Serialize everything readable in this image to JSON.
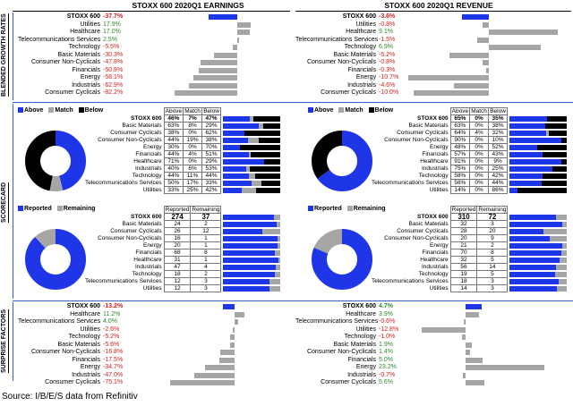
{
  "headers": {
    "earnings": "STOXX 600 2020Q1 EARNINGS",
    "revenue": "STOXX 600 2020Q1 REVENUE"
  },
  "sections": {
    "growth": "BLENDED GROWTH RATES",
    "scorecard": "SCORECARD",
    "surprise": "SURPRISE FACTORS"
  },
  "colors": {
    "blue": "#1f35e8",
    "gray": "#a6a6a6",
    "black": "#000000",
    "pos": "#2e8b2e",
    "neg": "#d02020"
  },
  "legend": {
    "above": "Above",
    "match": "Match",
    "below": "Below",
    "reported": "Reported",
    "remaining": "Remaining"
  },
  "growth_earnings": [
    {
      "label": "STOXX 600",
      "text": "-37.7%",
      "value": -37.7
    },
    {
      "label": "Utilities",
      "text": "17.9%",
      "value": 17.9
    },
    {
      "label": "Healthcare",
      "text": "17.0%",
      "value": 17.0
    },
    {
      "label": "Telecommunications Services",
      "text": "2.5%",
      "value": 2.5
    },
    {
      "label": "Technology",
      "text": "-5.5%",
      "value": -5.5
    },
    {
      "label": "Basic Materials",
      "text": "-30.3%",
      "value": -30.3
    },
    {
      "label": "Consumer Non-Cyclicals",
      "text": "-47.8%",
      "value": -47.8
    },
    {
      "label": "Financials",
      "text": "-50.8%",
      "value": -50.8
    },
    {
      "label": "Energy",
      "text": "-58.1%",
      "value": -58.1
    },
    {
      "label": "Industrials",
      "text": "-62.9%",
      "value": -62.9
    },
    {
      "label": "Consumer Cyclicals",
      "text": "-82.2%",
      "value": -82.2
    }
  ],
  "growth_revenue": [
    {
      "label": "STOXX 600",
      "text": "-3.6%",
      "value": -3.6
    },
    {
      "label": "Utilities",
      "text": "-0.8%",
      "value": -0.8
    },
    {
      "label": "Healthcare",
      "text": "9.1%",
      "value": 9.1
    },
    {
      "label": "Telecommunications Services",
      "text": "-1.5%",
      "value": -1.5
    },
    {
      "label": "Technology",
      "text": "6.9%",
      "value": 6.9
    },
    {
      "label": "Basic Materials",
      "text": "-5.2%",
      "value": -5.2
    },
    {
      "label": "Consumer Non-Cyclicals",
      "text": "-0.8%",
      "value": -0.8
    },
    {
      "label": "Financials",
      "text": "-0.3%",
      "value": -0.3
    },
    {
      "label": "Energy",
      "text": "-10.7%",
      "value": -10.7
    },
    {
      "label": "Industrials",
      "text": "-4.6%",
      "value": -4.6
    },
    {
      "label": "Consumer Cyclicals",
      "text": "-10.0%",
      "value": -10.0
    }
  ],
  "beat_earnings": {
    "pie": {
      "above": 46,
      "match": 7,
      "below": 47
    },
    "head": [
      "Above",
      "Match",
      "Below"
    ],
    "rows": [
      {
        "label": "STOXX 600",
        "a": "46%",
        "m": "7%",
        "b": "47%",
        "av": 46,
        "mv": 7,
        "bv": 47
      },
      {
        "label": "Basic Materials",
        "a": "63%",
        "m": "8%",
        "b": "29%",
        "av": 63,
        "mv": 8,
        "bv": 29
      },
      {
        "label": "Consumer Cyclicals",
        "a": "38%",
        "m": "0%",
        "b": "62%",
        "av": 38,
        "mv": 0,
        "bv": 62
      },
      {
        "label": "Consumer Non-Cyclicals",
        "a": "44%",
        "m": "19%",
        "b": "38%",
        "av": 44,
        "mv": 19,
        "bv": 38
      },
      {
        "label": "Energy",
        "a": "30%",
        "m": "0%",
        "b": "70%",
        "av": 30,
        "mv": 0,
        "bv": 70
      },
      {
        "label": "Financials",
        "a": "44%",
        "m": "4%",
        "b": "51%",
        "av": 44,
        "mv": 4,
        "bv": 51
      },
      {
        "label": "Healthcare",
        "a": "71%",
        "m": "0%",
        "b": "29%",
        "av": 71,
        "mv": 0,
        "bv": 29
      },
      {
        "label": "Industrials",
        "a": "40%",
        "m": "6%",
        "b": "53%",
        "av": 40,
        "mv": 6,
        "bv": 53
      },
      {
        "label": "Technology",
        "a": "44%",
        "m": "11%",
        "b": "44%",
        "av": 44,
        "mv": 11,
        "bv": 44
      },
      {
        "label": "Telecommunications Services",
        "a": "50%",
        "m": "17%",
        "b": "33%",
        "av": 50,
        "mv": 17,
        "bv": 33
      },
      {
        "label": "Utilities",
        "a": "33%",
        "m": "25%",
        "b": "42%",
        "av": 33,
        "mv": 25,
        "bv": 42
      }
    ]
  },
  "beat_revenue": {
    "pie": {
      "above": 65,
      "match": 0,
      "below": 35
    },
    "head": [
      "Above",
      "Match",
      "Below"
    ],
    "rows": [
      {
        "label": "STOXX 600",
        "a": "65%",
        "m": "0%",
        "b": "35%",
        "av": 65,
        "mv": 0,
        "bv": 35
      },
      {
        "label": "Basic Materials",
        "a": "63%",
        "m": "0%",
        "b": "38%",
        "av": 63,
        "mv": 0,
        "bv": 38
      },
      {
        "label": "Consumer Cyclicals",
        "a": "64%",
        "m": "4%",
        "b": "32%",
        "av": 64,
        "mv": 4,
        "bv": 32
      },
      {
        "label": "Consumer Non-Cyclicals",
        "a": "90%",
        "m": "0%",
        "b": "10%",
        "av": 90,
        "mv": 0,
        "bv": 10
      },
      {
        "label": "Energy",
        "a": "48%",
        "m": "0%",
        "b": "52%",
        "av": 48,
        "mv": 0,
        "bv": 52
      },
      {
        "label": "Financials",
        "a": "57%",
        "m": "0%",
        "b": "43%",
        "av": 57,
        "mv": 0,
        "bv": 43
      },
      {
        "label": "Healthcare",
        "a": "91%",
        "m": "0%",
        "b": "9%",
        "av": 91,
        "mv": 0,
        "bv": 9
      },
      {
        "label": "Industrials",
        "a": "75%",
        "m": "0%",
        "b": "25%",
        "av": 75,
        "mv": 0,
        "bv": 25
      },
      {
        "label": "Technology",
        "a": "58%",
        "m": "0%",
        "b": "42%",
        "av": 58,
        "mv": 0,
        "bv": 42
      },
      {
        "label": "Telecommunications Services",
        "a": "56%",
        "m": "0%",
        "b": "44%",
        "av": 56,
        "mv": 0,
        "bv": 44
      },
      {
        "label": "Utilities",
        "a": "14%",
        "m": "0%",
        "b": "86%",
        "av": 14,
        "mv": 0,
        "bv": 86
      }
    ]
  },
  "rep_earnings": {
    "pie": {
      "reported": 274,
      "remaining": 37
    },
    "head": [
      "Reported",
      "Remaining"
    ],
    "rows": [
      {
        "label": "STOXX 600",
        "r": "274",
        "x": "37",
        "rv": 274,
        "xv": 37
      },
      {
        "label": "Basic Materials",
        "r": "24",
        "x": "2",
        "rv": 24,
        "xv": 2
      },
      {
        "label": "Consumer Cyclicals",
        "r": "26",
        "x": "12",
        "rv": 26,
        "xv": 12
      },
      {
        "label": "Consumer Non-Cyclicals",
        "r": "16",
        "x": "1",
        "rv": 16,
        "xv": 1
      },
      {
        "label": "Energy",
        "r": "20",
        "x": "1",
        "rv": 20,
        "xv": 1
      },
      {
        "label": "Financials",
        "r": "68",
        "x": "8",
        "rv": 68,
        "xv": 8
      },
      {
        "label": "Healthcare",
        "r": "31",
        "x": "1",
        "rv": 31,
        "xv": 1
      },
      {
        "label": "Industrials",
        "r": "47",
        "x": "4",
        "rv": 47,
        "xv": 4
      },
      {
        "label": "Technology",
        "r": "18",
        "x": "2",
        "rv": 18,
        "xv": 2
      },
      {
        "label": "Telecommunications Services",
        "r": "12",
        "x": "3",
        "rv": 12,
        "xv": 3
      },
      {
        "label": "Utilities",
        "r": "12",
        "x": "3",
        "rv": 12,
        "xv": 3
      }
    ]
  },
  "rep_revenue": {
    "pie": {
      "reported": 310,
      "remaining": 72
    },
    "head": [
      "Reported",
      "Remaining"
    ],
    "rows": [
      {
        "label": "STOXX 600",
        "r": "310",
        "x": "72",
        "rv": 310,
        "xv": 72
      },
      {
        "label": "Basic Materials",
        "r": "32",
        "x": "3",
        "rv": 32,
        "xv": 3
      },
      {
        "label": "Consumer Cyclicals",
        "r": "28",
        "x": "20",
        "rv": 28,
        "xv": 20
      },
      {
        "label": "Consumer Non-Cyclicals",
        "r": "20",
        "x": "9",
        "rv": 20,
        "xv": 9
      },
      {
        "label": "Energy",
        "r": "21",
        "x": "2",
        "rv": 21,
        "xv": 2
      },
      {
        "label": "Financials",
        "r": "70",
        "x": "8",
        "rv": 70,
        "xv": 8
      },
      {
        "label": "Healthcare",
        "r": "32",
        "x": "5",
        "rv": 32,
        "xv": 5
      },
      {
        "label": "Industrials",
        "r": "56",
        "x": "14",
        "rv": 56,
        "xv": 14
      },
      {
        "label": "Technology",
        "r": "19",
        "x": "5",
        "rv": 19,
        "xv": 5
      },
      {
        "label": "Telecommunications Services",
        "r": "18",
        "x": "3",
        "rv": 18,
        "xv": 3
      },
      {
        "label": "Utilities",
        "r": "14",
        "x": "3",
        "rv": 14,
        "xv": 3
      }
    ]
  },
  "surprise_earnings": [
    {
      "label": "STOXX 600",
      "text": "-13.2%",
      "value": -13.2
    },
    {
      "label": "Healthcare",
      "text": "11.2%",
      "value": 11.2
    },
    {
      "label": "Telecommunications Services",
      "text": "4.0%",
      "value": 4.0
    },
    {
      "label": "Utilities",
      "text": "-2.6%",
      "value": -2.6
    },
    {
      "label": "Technology",
      "text": "-5.2%",
      "value": -5.2
    },
    {
      "label": "Basic Materials",
      "text": "-5.6%",
      "value": -5.6
    },
    {
      "label": "Consumer Non-Cyclicals",
      "text": "-16.8%",
      "value": -16.8
    },
    {
      "label": "Financials",
      "text": "-17.5%",
      "value": -17.5
    },
    {
      "label": "Energy",
      "text": "-34.7%",
      "value": -34.7
    },
    {
      "label": "Industrials",
      "text": "-47.0%",
      "value": -47.0
    },
    {
      "label": "Consumer Cyclicals",
      "text": "-75.1%",
      "value": -75.1
    }
  ],
  "surprise_revenue": [
    {
      "label": "STOXX 600",
      "text": "4.7%",
      "value": 4.7
    },
    {
      "label": "Healthcare",
      "text": "3.9%",
      "value": 3.9
    },
    {
      "label": "Telecommunications Services",
      "text": "-0.6%",
      "value": -0.6
    },
    {
      "label": "Utilities",
      "text": "-12.8%",
      "value": -12.8
    },
    {
      "label": "Technology",
      "text": "-1.0%",
      "value": -1.0
    },
    {
      "label": "Basic Materials",
      "text": "1.9%",
      "value": 1.9
    },
    {
      "label": "Consumer Non-Cyclicals",
      "text": "1.4%",
      "value": 1.4
    },
    {
      "label": "Financials",
      "text": "5.0%",
      "value": 5.0
    },
    {
      "label": "Energy",
      "text": "23.2%",
      "value": 23.2
    },
    {
      "label": "Industrials",
      "text": "-0.7%",
      "value": -0.7
    },
    {
      "label": "Consumer Cyclicals",
      "text": "5.6%",
      "value": 5.6
    }
  ],
  "source": "Source: I/B/E/S data from Refinitiv",
  "chart_data": [
    {
      "type": "bar",
      "title": "STOXX 600 2020Q1 EARNINGS",
      "subtitle": "BLENDED GROWTH RATES",
      "categories": [
        "STOXX 600",
        "Utilities",
        "Healthcare",
        "Telecommunications Services",
        "Technology",
        "Basic Materials",
        "Consumer Non-Cyclicals",
        "Financials",
        "Energy",
        "Industrials",
        "Consumer Cyclicals"
      ],
      "values": [
        -37.7,
        17.9,
        17.0,
        2.5,
        -5.5,
        -30.3,
        -47.8,
        -50.8,
        -58.1,
        -62.9,
        -82.2
      ]
    },
    {
      "type": "bar",
      "title": "STOXX 600 2020Q1 REVENUE",
      "subtitle": "BLENDED GROWTH RATES",
      "categories": [
        "STOXX 600",
        "Utilities",
        "Healthcare",
        "Telecommunications Services",
        "Technology",
        "Basic Materials",
        "Consumer Non-Cyclicals",
        "Financials",
        "Energy",
        "Industrials",
        "Consumer Cyclicals"
      ],
      "values": [
        -3.6,
        -0.8,
        9.1,
        -1.5,
        6.9,
        -5.2,
        -0.8,
        -0.3,
        -10.7,
        -4.6,
        -10.0
      ]
    },
    {
      "type": "pie",
      "subtitle": "SCORECARD",
      "series": [
        {
          "name": "Above",
          "values": [
            46
          ]
        },
        {
          "name": "Match",
          "values": [
            7
          ]
        },
        {
          "name": "Below",
          "values": [
            47
          ]
        }
      ]
    },
    {
      "type": "pie",
      "subtitle": "SCORECARD",
      "series": [
        {
          "name": "Above",
          "values": [
            65
          ]
        },
        {
          "name": "Match",
          "values": [
            0
          ]
        },
        {
          "name": "Below",
          "values": [
            35
          ]
        }
      ]
    },
    {
      "type": "pie",
      "subtitle": "SCORECARD",
      "series": [
        {
          "name": "Reported",
          "values": [
            274
          ]
        },
        {
          "name": "Remaining",
          "values": [
            37
          ]
        }
      ]
    },
    {
      "type": "pie",
      "subtitle": "SCORECARD",
      "series": [
        {
          "name": "Reported",
          "values": [
            310
          ]
        },
        {
          "name": "Remaining",
          "values": [
            72
          ]
        }
      ]
    },
    {
      "type": "bar",
      "subtitle": "SURPRISE FACTORS",
      "categories": [
        "STOXX 600",
        "Healthcare",
        "Telecommunications Services",
        "Utilities",
        "Technology",
        "Basic Materials",
        "Consumer Non-Cyclicals",
        "Financials",
        "Energy",
        "Industrials",
        "Consumer Cyclicals"
      ],
      "values": [
        -13.2,
        11.2,
        4.0,
        -2.6,
        -5.2,
        -5.6,
        -16.8,
        -17.5,
        -34.7,
        -47.0,
        -75.1
      ]
    },
    {
      "type": "bar",
      "subtitle": "SURPRISE FACTORS",
      "categories": [
        "STOXX 600",
        "Healthcare",
        "Telecommunications Services",
        "Utilities",
        "Technology",
        "Basic Materials",
        "Consumer Non-Cyclicals",
        "Financials",
        "Energy",
        "Industrials",
        "Consumer Cyclicals"
      ],
      "values": [
        4.7,
        3.9,
        -0.6,
        -12.8,
        -1.0,
        1.9,
        1.4,
        5.0,
        23.2,
        -0.7,
        5.6
      ]
    }
  ]
}
